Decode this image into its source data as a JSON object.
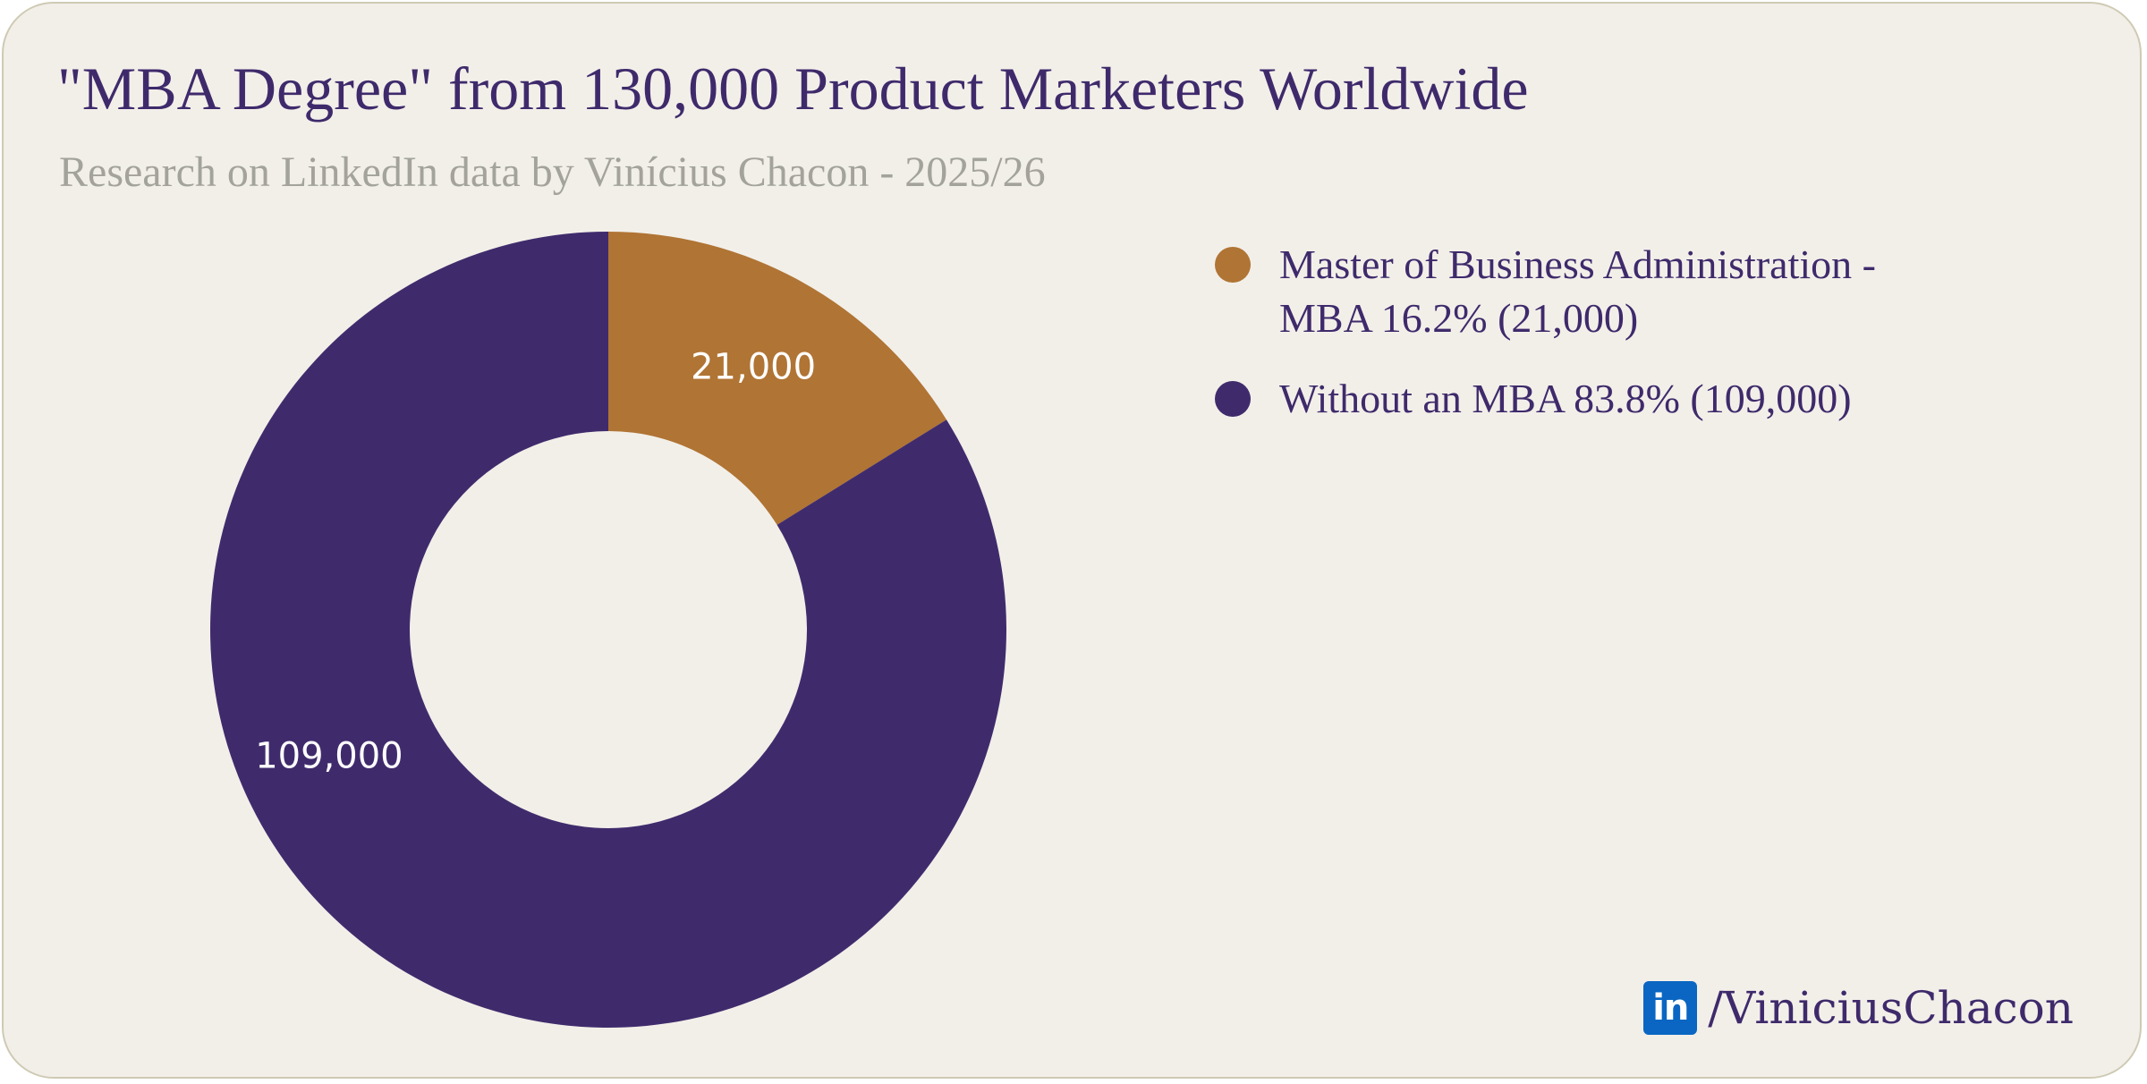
{
  "header": {
    "title": "\"MBA Degree\" from 130,000 Product Marketers Worldwide",
    "subtitle": "Research on LinkedIn data by Vinícius Chacon - 2025/26"
  },
  "chart_data": {
    "type": "pie",
    "donut": true,
    "title": "\"MBA Degree\" from 130,000 Product Marketers Worldwide",
    "subtitle": "Research on LinkedIn data by Vinícius Chacon - 2025/26",
    "categories": [
      "Master of Business Administration - MBA",
      "Without an MBA"
    ],
    "values": [
      21000,
      109000
    ],
    "data_labels": [
      "21,000",
      "109,000"
    ],
    "colors": [
      "#b07434",
      "#3f2b6c"
    ],
    "legend_placement": "right",
    "legend": [
      {
        "line1": "Master of Business Administration -",
        "line2": "MBA 16.2% (21,000)",
        "color": "#b07434"
      },
      {
        "line1": "Without an MBA 83.8% (109,000)",
        "line2": "",
        "color": "#3f2b6c"
      }
    ]
  },
  "brand": {
    "icon": "linkedin-icon",
    "icon_text": "in",
    "handle": "/ViniciusChacon"
  }
}
